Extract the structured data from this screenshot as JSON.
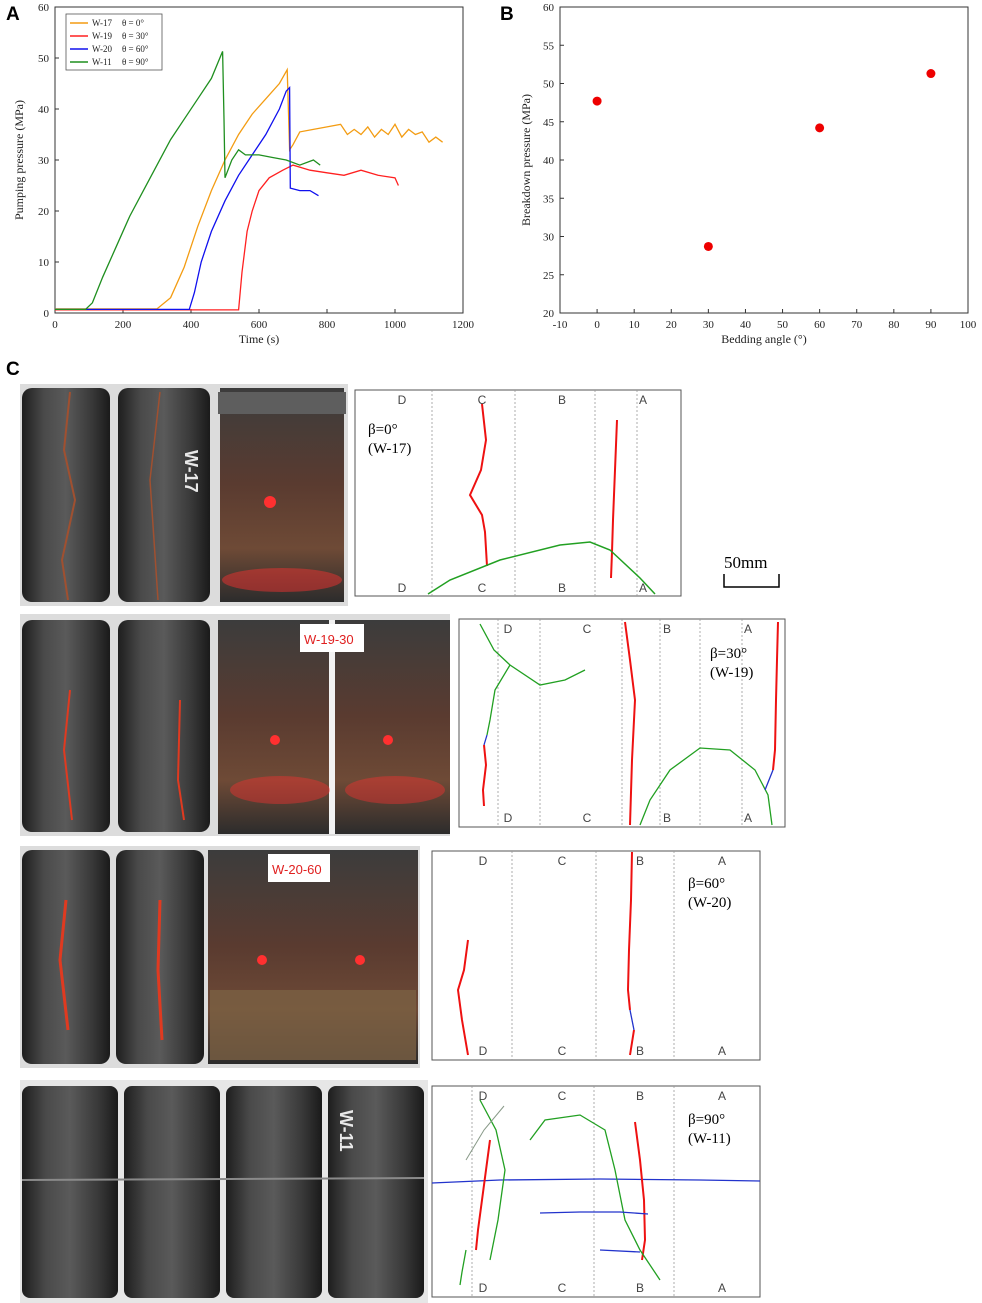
{
  "panels": {
    "a": "A",
    "b": "B",
    "c": "C"
  },
  "chart_data": [
    {
      "type": "line",
      "xlabel": "Time (s)",
      "ylabel": "Pumping pressure (MPa)",
      "xlim": [
        0,
        1200
      ],
      "ylim": [
        0,
        60
      ],
      "xticks": [
        0,
        200,
        400,
        600,
        800,
        1000,
        1200
      ],
      "yticks": [
        0,
        10,
        20,
        30,
        40,
        50,
        60
      ],
      "grid": false,
      "legend_position": "top-left",
      "series": [
        {
          "name": "W-17",
          "angle_label": "θ = 0°",
          "color": "#f39c12",
          "points": [
            [
              0,
              0.8
            ],
            [
              300,
              0.8
            ],
            [
              340,
              3
            ],
            [
              380,
              9
            ],
            [
              420,
              17
            ],
            [
              460,
              24
            ],
            [
              500,
              30
            ],
            [
              540,
              35
            ],
            [
              580,
              39
            ],
            [
              620,
              42
            ],
            [
              660,
              45
            ],
            [
              683,
              47.7
            ],
            [
              690,
              32
            ],
            [
              700,
              33
            ],
            [
              720,
              35.5
            ],
            [
              760,
              36
            ],
            [
              800,
              36.5
            ],
            [
              840,
              37
            ],
            [
              860,
              35
            ],
            [
              880,
              36
            ],
            [
              900,
              35
            ],
            [
              920,
              36.5
            ],
            [
              940,
              34.5
            ],
            [
              960,
              36
            ],
            [
              980,
              35
            ],
            [
              1000,
              37
            ],
            [
              1020,
              34.5
            ],
            [
              1040,
              36
            ],
            [
              1060,
              35
            ],
            [
              1080,
              35.5
            ],
            [
              1100,
              33.5
            ],
            [
              1120,
              34.5
            ],
            [
              1140,
              33.5
            ]
          ]
        },
        {
          "name": "W-19",
          "angle_label": "θ = 30°",
          "color": "#ff2020",
          "points": [
            [
              0,
              0.6
            ],
            [
              540,
              0.6
            ],
            [
              550,
              8
            ],
            [
              565,
              16
            ],
            [
              580,
              20
            ],
            [
              600,
              24
            ],
            [
              630,
              26.5
            ],
            [
              670,
              28
            ],
            [
              700,
              29
            ],
            [
              750,
              28
            ],
            [
              800,
              27.5
            ],
            [
              850,
              27
            ],
            [
              900,
              28
            ],
            [
              950,
              27
            ],
            [
              1000,
              26.5
            ],
            [
              1010,
              25
            ]
          ]
        },
        {
          "name": "W-20",
          "angle_label": "θ = 60°",
          "color": "#1010ee",
          "points": [
            [
              0,
              0.7
            ],
            [
              395,
              0.7
            ],
            [
              410,
              4
            ],
            [
              430,
              10
            ],
            [
              460,
              16
            ],
            [
              500,
              22
            ],
            [
              540,
              27
            ],
            [
              580,
              31
            ],
            [
              620,
              35
            ],
            [
              660,
              40
            ],
            [
              680,
              43.5
            ],
            [
              690,
              44.2
            ],
            [
              692,
              24.5
            ],
            [
              720,
              24
            ],
            [
              750,
              24
            ],
            [
              775,
              23
            ]
          ]
        },
        {
          "name": "W-11",
          "angle_label": "θ = 90°",
          "color": "#1f8f1f",
          "points": [
            [
              0,
              0.7
            ],
            [
              90,
              0.7
            ],
            [
              110,
              2
            ],
            [
              140,
              7
            ],
            [
              180,
              13
            ],
            [
              220,
              19
            ],
            [
              260,
              24
            ],
            [
              300,
              29
            ],
            [
              340,
              34
            ],
            [
              380,
              38
            ],
            [
              420,
              42
            ],
            [
              460,
              46
            ],
            [
              493,
              51.3
            ],
            [
              497,
              38
            ],
            [
              500,
              26.5
            ],
            [
              520,
              30
            ],
            [
              540,
              32
            ],
            [
              560,
              31
            ],
            [
              600,
              31
            ],
            [
              640,
              30.5
            ],
            [
              680,
              30
            ],
            [
              720,
              29
            ],
            [
              760,
              30
            ],
            [
              780,
              29
            ]
          ]
        }
      ]
    },
    {
      "type": "scatter",
      "xlabel": "Bedding angle (°)",
      "ylabel": "Breakdown pressure (MPa)",
      "xlim": [
        -10,
        100
      ],
      "ylim": [
        20,
        60
      ],
      "xticks": [
        -10,
        0,
        10,
        20,
        30,
        40,
        50,
        60,
        70,
        80,
        90,
        100
      ],
      "yticks": [
        20,
        25,
        30,
        35,
        40,
        45,
        50,
        55,
        60
      ],
      "grid": false,
      "color": "#ee0000",
      "x": [
        0,
        30,
        60,
        90
      ],
      "y": [
        47.7,
        28.7,
        44.2,
        51.3
      ]
    }
  ],
  "fracture_maps": [
    {
      "id": "W-17",
      "beta_label": "β=0°",
      "sample_label": "(W-17)",
      "top_letters": [
        "D",
        "C",
        "B",
        "A"
      ],
      "bottom_letters": [
        "D",
        "C",
        "B",
        "A"
      ],
      "photo_labels": [
        "W-17"
      ]
    },
    {
      "id": "W-19",
      "beta_label": "β=30°",
      "sample_label": "(W-19)",
      "top_letters": [
        "D",
        "C",
        "B",
        "A"
      ],
      "bottom_letters": [
        "D",
        "C",
        "B",
        "A"
      ],
      "photo_labels": [
        "W-19-30"
      ]
    },
    {
      "id": "W-20",
      "beta_label": "β=60°",
      "sample_label": "(W-20)",
      "top_letters": [
        "D",
        "C",
        "B",
        "A"
      ],
      "bottom_letters": [
        "D",
        "C",
        "B",
        "A"
      ],
      "photo_labels": [
        "W-20-60"
      ]
    },
    {
      "id": "W-11",
      "beta_label": "β=90°",
      "sample_label": "(W-11)",
      "top_letters": [
        "D",
        "C",
        "B",
        "A"
      ],
      "bottom_letters": [
        "D",
        "C",
        "B",
        "A"
      ],
      "photo_labels": [
        "W-11"
      ]
    }
  ],
  "scale_bar": "50mm",
  "colors": {
    "hydraulic_fracture": "#ee1111",
    "bedding_fracture": "#22a022",
    "natural_fracture": "#2233cc",
    "rock": "#3a3a3a"
  }
}
